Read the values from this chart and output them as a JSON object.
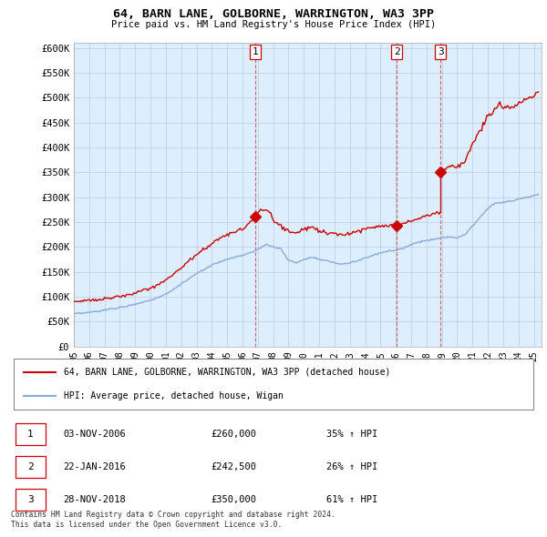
{
  "title": "64, BARN LANE, GOLBORNE, WARRINGTON, WA3 3PP",
  "subtitle": "Price paid vs. HM Land Registry's House Price Index (HPI)",
  "legend_line1": "64, BARN LANE, GOLBORNE, WARRINGTON, WA3 3PP (detached house)",
  "legend_line2": "HPI: Average price, detached house, Wigan",
  "footer1": "Contains HM Land Registry data © Crown copyright and database right 2024.",
  "footer2": "This data is licensed under the Open Government Licence v3.0.",
  "transactions": [
    {
      "num": 1,
      "date": "03-NOV-2006",
      "price": "£260,000",
      "pct": "35% ↑ HPI"
    },
    {
      "num": 2,
      "date": "22-JAN-2016",
      "price": "£242,500",
      "pct": "26% ↑ HPI"
    },
    {
      "num": 3,
      "date": "28-NOV-2018",
      "price": "£350,000",
      "pct": "61% ↑ HPI"
    }
  ],
  "transaction_years": [
    2006.84,
    2016.06,
    2018.91
  ],
  "transaction_prices": [
    260000,
    242500,
    350000
  ],
  "red_line_color": "#cc0000",
  "blue_line_color": "#88aadd",
  "vline_color": "#cc6666",
  "background_color": "#ddeeff",
  "ylim": [
    0,
    600000
  ],
  "xlim_start": 1995.0,
  "xlim_end": 2025.5,
  "yticks": [
    0,
    50000,
    100000,
    150000,
    200000,
    250000,
    300000,
    350000,
    400000,
    450000,
    500000,
    550000,
    600000
  ],
  "ytick_labels": [
    "£0",
    "£50K",
    "£100K",
    "£150K",
    "£200K",
    "£250K",
    "£300K",
    "£350K",
    "£400K",
    "£450K",
    "£500K",
    "£550K",
    "£600K"
  ],
  "xtick_years": [
    1995,
    1996,
    1997,
    1998,
    1999,
    2000,
    2001,
    2002,
    2003,
    2004,
    2005,
    2006,
    2007,
    2008,
    2009,
    2010,
    2011,
    2012,
    2013,
    2014,
    2015,
    2016,
    2017,
    2018,
    2019,
    2020,
    2021,
    2022,
    2023,
    2024,
    2025
  ],
  "xtick_labels": [
    "95",
    "96",
    "97",
    "98",
    "99",
    "00",
    "01",
    "02",
    "03",
    "04",
    "05",
    "06",
    "07",
    "08",
    "09",
    "10",
    "11",
    "12",
    "13",
    "14",
    "15",
    "16",
    "17",
    "18",
    "19",
    "20",
    "21",
    "22",
    "23",
    "24",
    "25"
  ]
}
